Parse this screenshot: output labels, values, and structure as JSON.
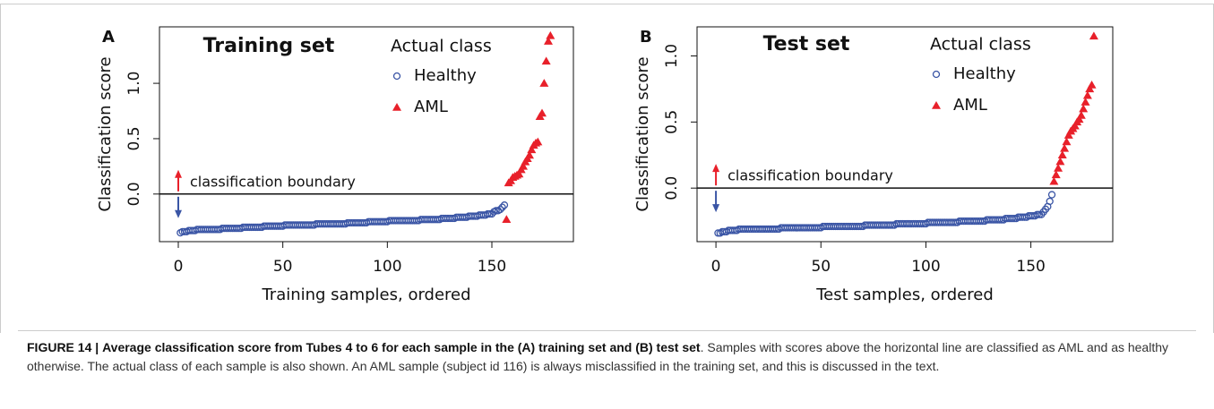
{
  "chart_data": [
    {
      "type": "scatter",
      "panel": "A",
      "title": "Training set",
      "xlabel": "Training samples, ordered",
      "ylabel": "Classification score",
      "legend_title": "Actual class",
      "annotation": "classification boundary",
      "hline": 0,
      "xlim": [
        -9,
        189
      ],
      "xticks": [
        0,
        50,
        100,
        150
      ],
      "ylim": [
        -0.43,
        1.51
      ],
      "yticks": [
        {
          "value": 0,
          "label": "0.0"
        },
        0.5,
        {
          "value": 1,
          "label": "1.0"
        }
      ],
      "series": [
        {
          "name": "Healthy",
          "color": "#3a55a5",
          "marker": "circle",
          "x": [
            1,
            2,
            3,
            4,
            5,
            6,
            7,
            8,
            9,
            10,
            11,
            12,
            13,
            14,
            15,
            16,
            17,
            18,
            19,
            20,
            21,
            22,
            23,
            24,
            25,
            26,
            27,
            28,
            29,
            30,
            31,
            32,
            33,
            34,
            35,
            36,
            37,
            38,
            39,
            40,
            41,
            42,
            43,
            44,
            45,
            46,
            47,
            48,
            49,
            50,
            51,
            52,
            53,
            54,
            55,
            56,
            57,
            58,
            59,
            60,
            61,
            62,
            63,
            64,
            65,
            66,
            67,
            68,
            69,
            70,
            71,
            72,
            73,
            74,
            75,
            76,
            77,
            78,
            79,
            80,
            81,
            82,
            83,
            84,
            85,
            86,
            87,
            88,
            89,
            90,
            91,
            92,
            93,
            94,
            95,
            96,
            97,
            98,
            99,
            100,
            101,
            102,
            103,
            104,
            105,
            106,
            107,
            108,
            109,
            110,
            111,
            112,
            113,
            114,
            115,
            116,
            117,
            118,
            119,
            120,
            121,
            122,
            123,
            124,
            125,
            126,
            127,
            128,
            129,
            130,
            131,
            132,
            133,
            134,
            135,
            136,
            137,
            138,
            139,
            140,
            141,
            142,
            143,
            144,
            145,
            146,
            147,
            148,
            149,
            150,
            151,
            152,
            153,
            154,
            155,
            156
          ],
          "values": [
            -0.35,
            -0.34,
            -0.34,
            -0.34,
            -0.33,
            -0.33,
            -0.33,
            -0.33,
            -0.32,
            -0.32,
            -0.32,
            -0.32,
            -0.32,
            -0.32,
            -0.32,
            -0.32,
            -0.32,
            -0.32,
            -0.32,
            -0.32,
            -0.31,
            -0.31,
            -0.31,
            -0.31,
            -0.31,
            -0.31,
            -0.31,
            -0.31,
            -0.31,
            -0.31,
            -0.3,
            -0.3,
            -0.3,
            -0.3,
            -0.3,
            -0.3,
            -0.3,
            -0.3,
            -0.3,
            -0.3,
            -0.29,
            -0.29,
            -0.29,
            -0.29,
            -0.29,
            -0.29,
            -0.29,
            -0.29,
            -0.29,
            -0.29,
            -0.28,
            -0.28,
            -0.28,
            -0.28,
            -0.28,
            -0.28,
            -0.28,
            -0.28,
            -0.28,
            -0.28,
            -0.28,
            -0.28,
            -0.28,
            -0.28,
            -0.28,
            -0.27,
            -0.27,
            -0.27,
            -0.27,
            -0.27,
            -0.27,
            -0.27,
            -0.27,
            -0.27,
            -0.27,
            -0.27,
            -0.27,
            -0.27,
            -0.27,
            -0.27,
            -0.26,
            -0.26,
            -0.26,
            -0.26,
            -0.26,
            -0.26,
            -0.26,
            -0.26,
            -0.26,
            -0.26,
            -0.25,
            -0.25,
            -0.25,
            -0.25,
            -0.25,
            -0.25,
            -0.25,
            -0.25,
            -0.25,
            -0.25,
            -0.24,
            -0.24,
            -0.24,
            -0.24,
            -0.24,
            -0.24,
            -0.24,
            -0.24,
            -0.24,
            -0.24,
            -0.24,
            -0.24,
            -0.24,
            -0.24,
            -0.24,
            -0.23,
            -0.23,
            -0.23,
            -0.23,
            -0.23,
            -0.23,
            -0.23,
            -0.23,
            -0.23,
            -0.23,
            -0.22,
            -0.22,
            -0.22,
            -0.22,
            -0.22,
            -0.22,
            -0.22,
            -0.21,
            -0.21,
            -0.21,
            -0.21,
            -0.21,
            -0.21,
            -0.2,
            -0.2,
            -0.2,
            -0.2,
            -0.2,
            -0.19,
            -0.19,
            -0.19,
            -0.19,
            -0.18,
            -0.18,
            -0.18,
            -0.16,
            -0.15,
            -0.15,
            -0.14,
            -0.12,
            -0.1
          ]
        },
        {
          "name": "AML",
          "color": "#e8202a",
          "marker": "triangle",
          "x": [
            157,
            158,
            159,
            160,
            161,
            162,
            163,
            164,
            165,
            166,
            167,
            168,
            169,
            170,
            171,
            172,
            173,
            174,
            175,
            176,
            177,
            178
          ],
          "values": [
            -0.23,
            0.1,
            0.12,
            0.15,
            0.16,
            0.17,
            0.18,
            0.22,
            0.25,
            0.29,
            0.32,
            0.35,
            0.4,
            0.44,
            0.46,
            0.47,
            0.7,
            0.73,
            1.0,
            1.2,
            1.38,
            1.43
          ]
        }
      ]
    },
    {
      "type": "scatter",
      "panel": "B",
      "title": "Test set",
      "xlabel": "Test samples, ordered",
      "ylabel": "Classification score",
      "legend_title": "Actual class",
      "annotation": "classification boundary",
      "hline": 0,
      "xlim": [
        -9,
        189
      ],
      "xticks": [
        0,
        50,
        100,
        150
      ],
      "ylim": [
        -0.405,
        1.22
      ],
      "yticks": [
        {
          "value": 0,
          "label": "0.0"
        },
        0.5,
        {
          "value": 1,
          "label": "1.0"
        }
      ],
      "series": [
        {
          "name": "Healthy",
          "color": "#3a55a5",
          "marker": "circle",
          "x": [
            1,
            2,
            3,
            4,
            5,
            6,
            7,
            8,
            9,
            10,
            11,
            12,
            13,
            14,
            15,
            16,
            17,
            18,
            19,
            20,
            21,
            22,
            23,
            24,
            25,
            26,
            27,
            28,
            29,
            30,
            31,
            32,
            33,
            34,
            35,
            36,
            37,
            38,
            39,
            40,
            41,
            42,
            43,
            44,
            45,
            46,
            47,
            48,
            49,
            50,
            51,
            52,
            53,
            54,
            55,
            56,
            57,
            58,
            59,
            60,
            61,
            62,
            63,
            64,
            65,
            66,
            67,
            68,
            69,
            70,
            71,
            72,
            73,
            74,
            75,
            76,
            77,
            78,
            79,
            80,
            81,
            82,
            83,
            84,
            85,
            86,
            87,
            88,
            89,
            90,
            91,
            92,
            93,
            94,
            95,
            96,
            97,
            98,
            99,
            100,
            101,
            102,
            103,
            104,
            105,
            106,
            107,
            108,
            109,
            110,
            111,
            112,
            113,
            114,
            115,
            116,
            117,
            118,
            119,
            120,
            121,
            122,
            123,
            124,
            125,
            126,
            127,
            128,
            129,
            130,
            131,
            132,
            133,
            134,
            135,
            136,
            137,
            138,
            139,
            140,
            141,
            142,
            143,
            144,
            145,
            146,
            147,
            148,
            149,
            150,
            151,
            152,
            153,
            154,
            155,
            156,
            157,
            158,
            159,
            160
          ],
          "values": [
            -0.34,
            -0.34,
            -0.33,
            -0.33,
            -0.33,
            -0.32,
            -0.32,
            -0.32,
            -0.32,
            -0.32,
            -0.31,
            -0.31,
            -0.31,
            -0.31,
            -0.31,
            -0.31,
            -0.31,
            -0.31,
            -0.31,
            -0.31,
            -0.31,
            -0.31,
            -0.31,
            -0.31,
            -0.31,
            -0.31,
            -0.31,
            -0.31,
            -0.31,
            -0.31,
            -0.3,
            -0.3,
            -0.3,
            -0.3,
            -0.3,
            -0.3,
            -0.3,
            -0.3,
            -0.3,
            -0.3,
            -0.3,
            -0.3,
            -0.3,
            -0.3,
            -0.3,
            -0.3,
            -0.3,
            -0.3,
            -0.3,
            -0.3,
            -0.29,
            -0.29,
            -0.29,
            -0.29,
            -0.29,
            -0.29,
            -0.29,
            -0.29,
            -0.29,
            -0.29,
            -0.29,
            -0.29,
            -0.29,
            -0.29,
            -0.29,
            -0.29,
            -0.29,
            -0.29,
            -0.29,
            -0.29,
            -0.28,
            -0.28,
            -0.28,
            -0.28,
            -0.28,
            -0.28,
            -0.28,
            -0.28,
            -0.28,
            -0.28,
            -0.28,
            -0.28,
            -0.28,
            -0.28,
            -0.28,
            -0.27,
            -0.27,
            -0.27,
            -0.27,
            -0.27,
            -0.27,
            -0.27,
            -0.27,
            -0.27,
            -0.27,
            -0.27,
            -0.27,
            -0.27,
            -0.27,
            -0.27,
            -0.26,
            -0.26,
            -0.26,
            -0.26,
            -0.26,
            -0.26,
            -0.26,
            -0.26,
            -0.26,
            -0.26,
            -0.26,
            -0.26,
            -0.26,
            -0.26,
            -0.26,
            -0.25,
            -0.25,
            -0.25,
            -0.25,
            -0.25,
            -0.25,
            -0.25,
            -0.25,
            -0.25,
            -0.25,
            -0.25,
            -0.25,
            -0.25,
            -0.24,
            -0.24,
            -0.24,
            -0.24,
            -0.24,
            -0.24,
            -0.24,
            -0.24,
            -0.24,
            -0.23,
            -0.23,
            -0.23,
            -0.23,
            -0.23,
            -0.23,
            -0.22,
            -0.22,
            -0.22,
            -0.22,
            -0.22,
            -0.21,
            -0.21,
            -0.21,
            -0.21,
            -0.2,
            -0.2,
            -0.2,
            -0.18,
            -0.16,
            -0.14,
            -0.1,
            -0.05
          ]
        },
        {
          "name": "AML",
          "color": "#e8202a",
          "marker": "triangle",
          "x": [
            161,
            162,
            163,
            164,
            165,
            166,
            167,
            168,
            169,
            170,
            171,
            172,
            173,
            174,
            175,
            176,
            177,
            178,
            179,
            180
          ],
          "values": [
            0.05,
            0.1,
            0.15,
            0.2,
            0.25,
            0.3,
            0.35,
            0.4,
            0.43,
            0.45,
            0.47,
            0.5,
            0.52,
            0.55,
            0.6,
            0.65,
            0.7,
            0.75,
            0.78,
            1.15
          ]
        }
      ]
    }
  ],
  "caption": {
    "label": "FIGURE 14 |",
    "title": "Average classification score from Tubes 4 to 6 for each sample in the (A) training set and (B) test set",
    "text": ". Samples with scores above the horizontal line are classified as AML and as healthy otherwise. The actual class of each sample is also shown. An AML sample (subject id 116) is always misclassified in the training set, and this is discussed in the text."
  }
}
